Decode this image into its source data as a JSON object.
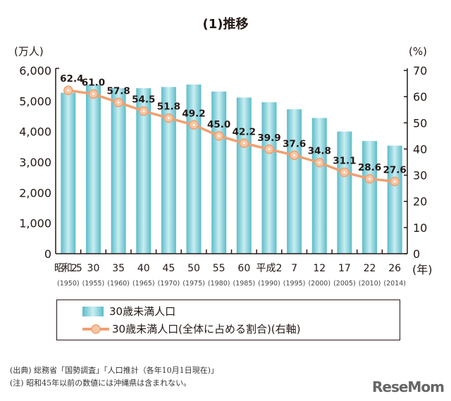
{
  "title": "(1)推移",
  "chart_data": {
    "type": "bar+line",
    "left_axis": {
      "unit_label": "(万人)",
      "ylim": [
        0,
        6000
      ],
      "ticks": [
        "0",
        "1,000",
        "2,000",
        "3,000",
        "4,000",
        "5,000",
        "6,000"
      ]
    },
    "right_axis": {
      "unit_label": "(%)",
      "ylim": [
        0,
        70
      ],
      "ticks": [
        "0",
        "10",
        "20",
        "30",
        "40",
        "50",
        "60",
        "70"
      ]
    },
    "x_unit_label": "(年)",
    "categories": [
      "昭和25",
      "30",
      "35",
      "40",
      "45",
      "50",
      "55",
      "60",
      "平成2",
      "7",
      "12",
      "17",
      "22",
      "26"
    ],
    "categories_western": [
      "(1950)",
      "(1955)",
      "(1960)",
      "(1965)",
      "(1970)",
      "(1975)",
      "(1980)",
      "(1985)",
      "(1990)",
      "(1995)",
      "(2000)",
      "(2005)",
      "(2010)",
      "(2014)"
    ],
    "series": [
      {
        "name": "30歳未満人口",
        "type": "bar",
        "axis": "left",
        "color": "#6cc5d0",
        "values": [
          5270,
          5540,
          5420,
          5420,
          5460,
          5540,
          5310,
          5115,
          4960,
          4730,
          4445,
          4000,
          3690,
          3540
        ]
      },
      {
        "name": "30歳未満人口(全体に占める割合)(右軸)",
        "type": "line",
        "axis": "right",
        "color": "#f0a070",
        "values": [
          62.4,
          61.0,
          57.8,
          54.5,
          51.8,
          49.2,
          45.0,
          42.2,
          39.9,
          37.6,
          34.8,
          31.1,
          28.6,
          27.6
        ],
        "labels": [
          "62.4",
          "61.0",
          "57.8",
          "54.5",
          "51.8",
          "49.2",
          "45.0",
          "42.2",
          "39.9",
          "37.6",
          "34.8",
          "31.1",
          "28.6",
          "27.6"
        ]
      }
    ]
  },
  "legend": {
    "bar_label": "30歳未満人口",
    "line_label": "30歳未満人口(全体に占める割合)(右軸)"
  },
  "notes": {
    "source": "(出典) 総務省「国勢調査」「人口推計（各年10月1日現在)」",
    "note": "(注) 昭和45年以前の数値には沖縄県は含まれない。"
  },
  "watermark": "ReseMom"
}
